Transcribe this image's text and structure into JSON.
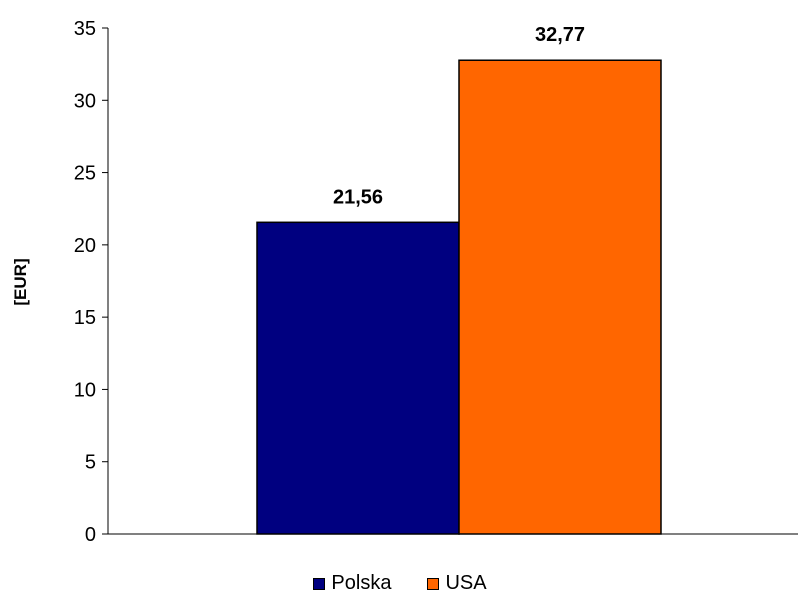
{
  "chart_data": {
    "type": "bar",
    "categories": [
      ""
    ],
    "series": [
      {
        "name": "Polska",
        "values": [
          21.56
        ],
        "color": "#000080",
        "label": "21,56"
      },
      {
        "name": "USA",
        "values": [
          32.77
        ],
        "color": "#FF6600",
        "label": "32,77"
      }
    ],
    "ylabel": "[EUR]",
    "ylim": [
      0,
      35
    ],
    "yticks": [
      0,
      5,
      10,
      15,
      20,
      25,
      30,
      35
    ],
    "grid": false,
    "legend_position": "bottom"
  }
}
